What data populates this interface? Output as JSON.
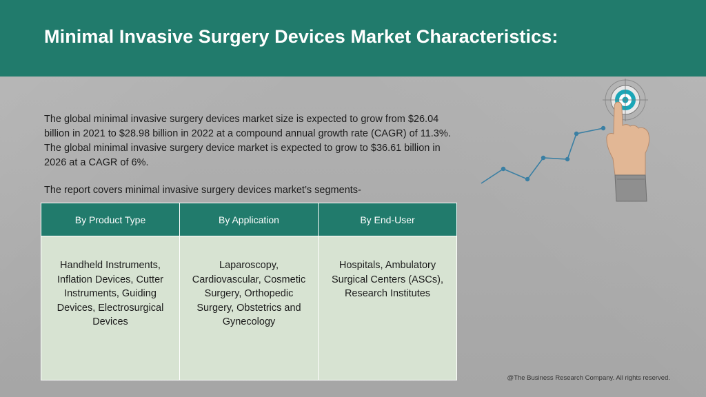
{
  "header": {
    "title": "Minimal Invasive Surgery Devices Market Characteristics:",
    "background_color": "#217b6c"
  },
  "body": {
    "intro": "The global minimal invasive surgery devices market size is expected to grow from $26.04 billion in 2021 to $28.98 billion in 2022 at a compound annual growth rate (CAGR) of 11.3%. The global minimal invasive surgery device market is expected to grow to $36.61 billion in 2026 at a CAGR of 6%.",
    "segments_note": "The report covers minimal invasive surgery devices market’s segments-"
  },
  "segments_table": {
    "headers": [
      "By Product Type",
      "By Application",
      "By End-User"
    ],
    "cells": [
      "Handheld Instruments, Inflation Devices, Cutter Instruments, Guiding Devices, Electrosurgical Devices",
      "Laparoscopy, Cardiovascular, Cosmetic Surgery, Orthopedic Surgery, Obstetrics and Gynecology",
      "Hospitals, Ambulatory Surgical Centers (ASCs), Research Institutes"
    ],
    "header_color": "#217b6c",
    "cell_color": "#d7e3d2"
  },
  "decoration": {
    "icon": "hand-touching-target-growth-chart-icon",
    "line_color": "#3a7fa3",
    "target_color": "#1aa6b7"
  },
  "footer": {
    "copyright": "@The Business Research Company. All rights reserved."
  }
}
